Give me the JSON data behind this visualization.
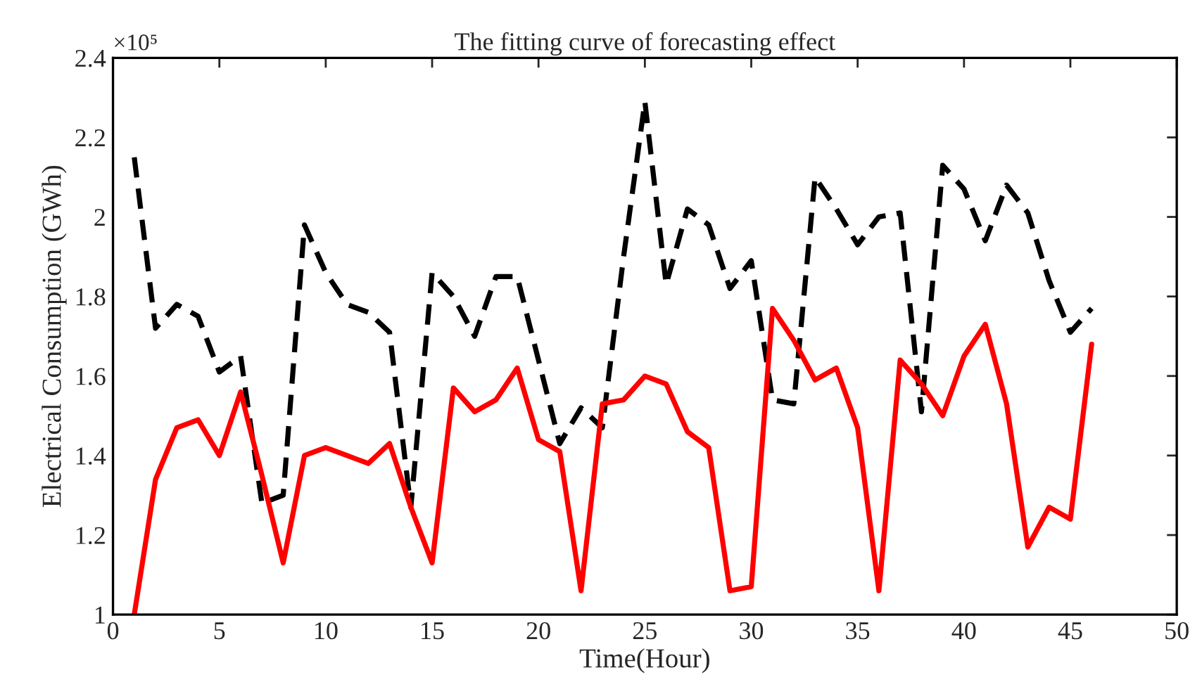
{
  "chart_data": {
    "type": "line",
    "title": "The fitting curve of forecasting effect",
    "xlabel": "Time(Hour)",
    "ylabel": "Electrical Consumption (GWh)",
    "annotations": [
      "×10⁵"
    ],
    "x": [
      1,
      2,
      3,
      4,
      5,
      6,
      7,
      8,
      9,
      10,
      11,
      12,
      13,
      14,
      15,
      16,
      17,
      18,
      19,
      20,
      21,
      22,
      23,
      24,
      25,
      26,
      27,
      28,
      29,
      30,
      31,
      32,
      33,
      34,
      35,
      36,
      37,
      38,
      39,
      40,
      41,
      42,
      43,
      44,
      45,
      46
    ],
    "series": [
      {
        "color": "#000000",
        "line_style": "dashed",
        "values": [
          2.15,
          1.72,
          1.78,
          1.75,
          1.61,
          1.65,
          1.28,
          1.3,
          1.98,
          1.86,
          1.78,
          1.76,
          1.71,
          1.27,
          1.86,
          1.8,
          1.7,
          1.85,
          1.85,
          1.64,
          1.43,
          1.52,
          1.47,
          1.9,
          2.29,
          1.83,
          2.02,
          1.98,
          1.82,
          1.89,
          1.54,
          1.53,
          2.1,
          2.02,
          1.93,
          2.0,
          2.01,
          1.51,
          2.13,
          2.07,
          1.94,
          2.08,
          2.01,
          1.84,
          1.71,
          1.77
        ]
      },
      {
        "color": "#ff0000",
        "line_style": "solid",
        "values": [
          1.0,
          1.34,
          1.47,
          1.49,
          1.4,
          1.56,
          1.35,
          1.13,
          1.4,
          1.42,
          1.4,
          1.38,
          1.43,
          1.27,
          1.13,
          1.57,
          1.51,
          1.54,
          1.62,
          1.44,
          1.41,
          1.06,
          1.53,
          1.54,
          1.6,
          1.58,
          1.46,
          1.42,
          1.06,
          1.07,
          1.77,
          1.69,
          1.59,
          1.62,
          1.47,
          1.06,
          1.64,
          1.58,
          1.5,
          1.65,
          1.73,
          1.53,
          1.17,
          1.27,
          1.24,
          1.68
        ]
      }
    ],
    "xlim": [
      0,
      50
    ],
    "xticks": [
      0,
      5,
      10,
      15,
      20,
      25,
      30,
      35,
      40,
      45,
      50
    ],
    "ylim": [
      1,
      2.4
    ],
    "yticks": [
      1,
      1.2,
      1.4,
      1.6,
      1.8,
      2,
      2.2,
      2.4
    ],
    "grid": false,
    "marker": "none"
  }
}
